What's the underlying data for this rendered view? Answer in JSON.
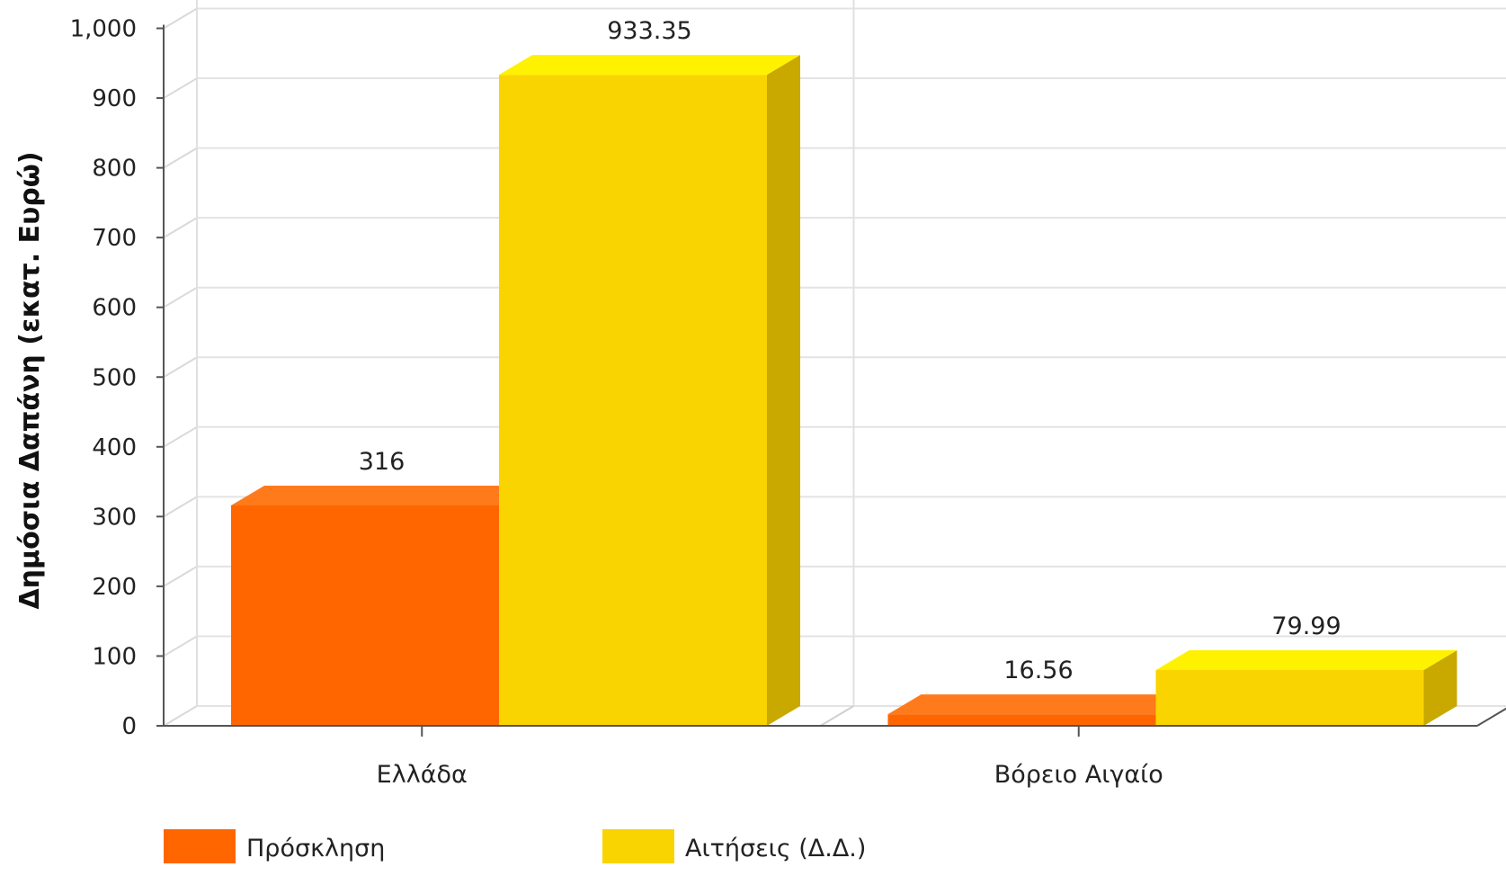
{
  "chart_data": {
    "type": "bar",
    "categories": [
      "Ελλάδα",
      "Βόρειο Αιγαίο"
    ],
    "series": [
      {
        "name": "Πρόσκληση",
        "values": [
          316,
          16.56
        ],
        "labels": [
          "316",
          "16.56"
        ],
        "color": "#FF6600",
        "top_color": "#FF7A1A",
        "side_color": "#D45200"
      },
      {
        "name": "Αιτήσεις (Δ.Δ.)",
        "values": [
          933.35,
          79.99
        ],
        "labels": [
          "933.35",
          "79.99"
        ],
        "color": "#FAD400",
        "top_color": "#FFF200",
        "side_color": "#C9A800"
      }
    ],
    "ylabel": "Δημόσια Δαπάνη (εκατ. Ευρώ)",
    "ylim": [
      0,
      1000
    ],
    "yticks": [
      0,
      100,
      200,
      300,
      400,
      500,
      600,
      700,
      800,
      900,
      1000
    ],
    "ytick_labels": [
      "0",
      "100",
      "200",
      "300",
      "400",
      "500",
      "600",
      "700",
      "800",
      "900",
      "1,000"
    ],
    "grid": true,
    "style": "3d",
    "legend_position": "bottom-left"
  }
}
